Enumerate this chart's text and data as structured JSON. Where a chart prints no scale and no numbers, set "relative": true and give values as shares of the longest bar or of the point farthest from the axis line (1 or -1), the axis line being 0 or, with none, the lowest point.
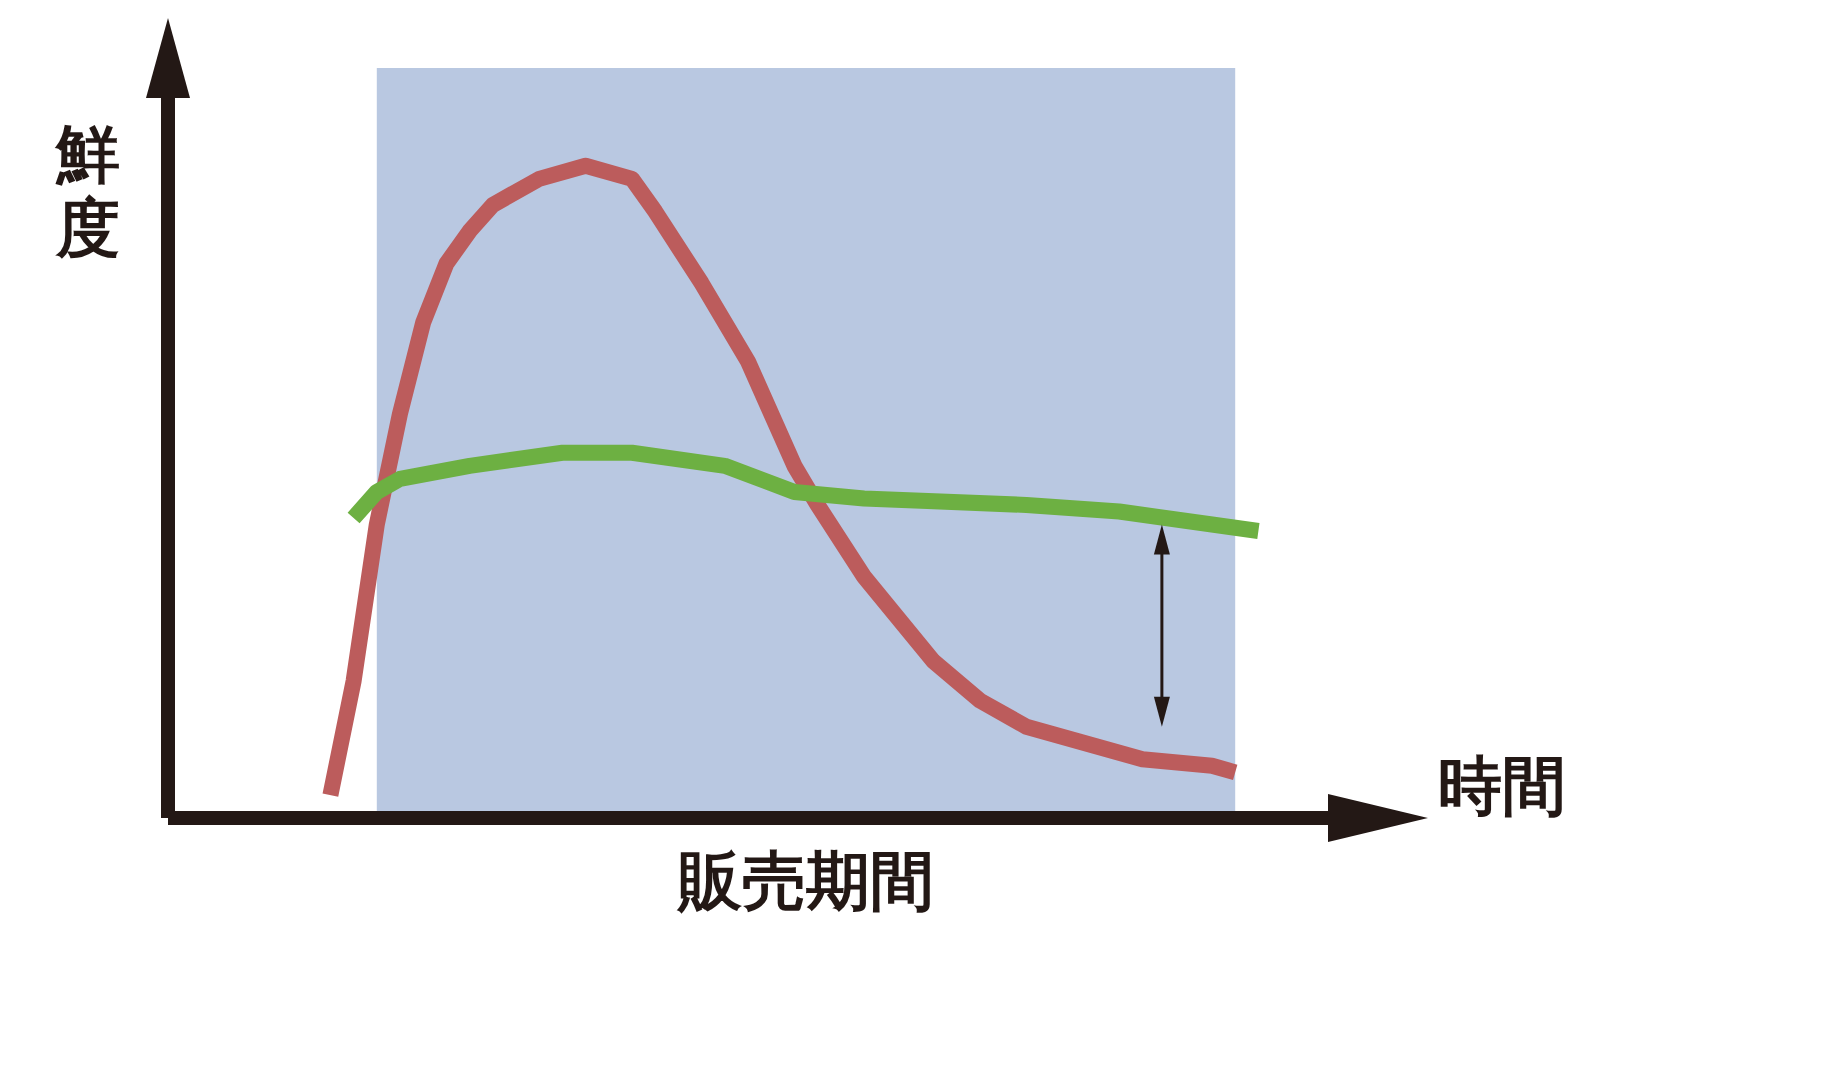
{
  "chart_data": {
    "type": "line",
    "relative": true,
    "xlabel": "時間",
    "ylabel": "鮮度",
    "categories": [
      null,
      null,
      null,
      null,
      null,
      null,
      null,
      null,
      null,
      null,
      null,
      null,
      null,
      null,
      null,
      null,
      null,
      null,
      null,
      null,
      null,
      null,
      null,
      null,
      null,
      null,
      null,
      null,
      null,
      null,
      null,
      null,
      null,
      null,
      null,
      null,
      null,
      null,
      null,
      null,
      null,
      null,
      null,
      null,
      null,
      null,
      null,
      null,
      null,
      null,
      null
    ],
    "series": [
      {
        "color": "#bc5c5c",
        "values": [
          null,
          null,
          null,
          null,
          null,
          null,
          null,
          0.035,
          0.21,
          0.45,
          0.62,
          0.76,
          0.85,
          0.9,
          0.94,
          null,
          0.98,
          null,
          1,
          null,
          0.98,
          0.93,
          null,
          0.82,
          null,
          0.7,
          null,
          0.54,
          0.48,
          null,
          0.37,
          null,
          null,
          0.24,
          null,
          0.18,
          null,
          0.14,
          null,
          null,
          0.11,
          null,
          0.09,
          null,
          null,
          0.08,
          0.07,
          null,
          null,
          null,
          null
        ]
      },
      {
        "color": "#6db042",
        "values": [
          null,
          null,
          null,
          null,
          null,
          null,
          null,
          null,
          0.46,
          0.5,
          0.52,
          null,
          null,
          0.54,
          null,
          null,
          null,
          0.56,
          null,
          null,
          0.56,
          null,
          null,
          null,
          0.54,
          null,
          null,
          0.5,
          null,
          null,
          0.49,
          null,
          null,
          null,
          null,
          null,
          null,
          0.48,
          null,
          null,
          null,
          0.47,
          null,
          null,
          null,
          0.45,
          null,
          0.44,
          null,
          null,
          null
        ]
      }
    ],
    "annotations": [
      "販売期間"
    ]
  }
}
